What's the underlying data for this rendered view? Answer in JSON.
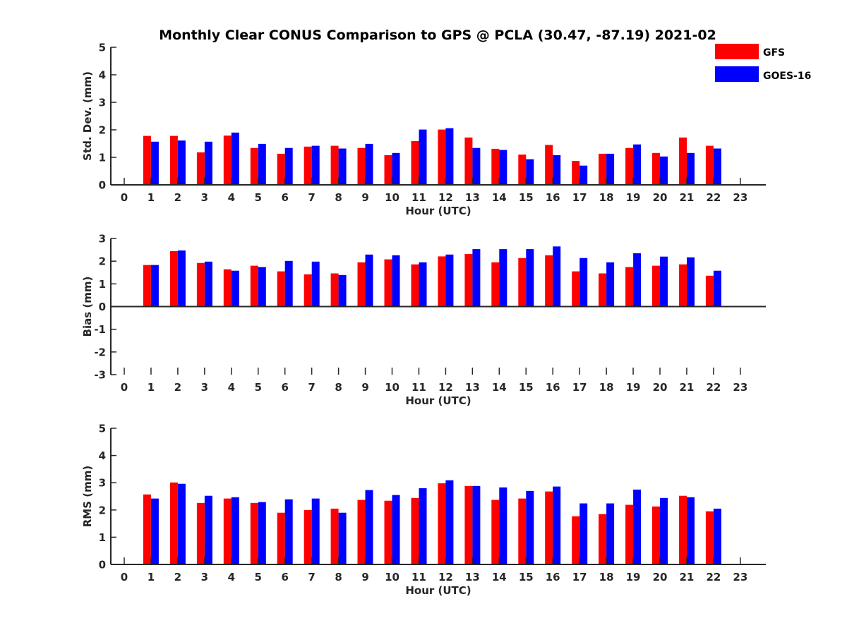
{
  "title": "Monthly Clear CONUS Comparison to GPS @ PCLA (30.47, -87.19) 2021-02",
  "legend": [
    {
      "label": "GFS",
      "color": "#ff0000"
    },
    {
      "label": "GOES-16",
      "color": "#0000ff"
    }
  ],
  "chart_data": [
    {
      "type": "bar",
      "title": "Monthly Clear CONUS Comparison to GPS @ PCLA (30.47, -87.19) 2021-02",
      "xlabel": "Hour (UTC)",
      "ylabel": "Std. Dev. (mm)",
      "ylim": [
        0,
        5
      ],
      "yticks": [
        "0",
        "1",
        "2",
        "3",
        "4",
        "5"
      ],
      "categories": [
        "0",
        "1",
        "2",
        "3",
        "4",
        "5",
        "6",
        "7",
        "8",
        "9",
        "10",
        "11",
        "12",
        "13",
        "14",
        "15",
        "16",
        "17",
        "18",
        "19",
        "20",
        "21",
        "22",
        "23"
      ],
      "series": [
        {
          "name": "GFS",
          "color": "#ff0000",
          "values": [
            null,
            1.78,
            1.78,
            1.18,
            1.79,
            1.34,
            1.13,
            1.39,
            1.42,
            1.34,
            1.08,
            1.59,
            2.01,
            1.72,
            1.31,
            1.1,
            1.45,
            0.87,
            1.13,
            1.34,
            1.16,
            1.72,
            1.42,
            null
          ]
        },
        {
          "name": "GOES-16",
          "color": "#0000ff",
          "values": [
            null,
            1.57,
            1.61,
            1.57,
            1.9,
            1.49,
            1.34,
            1.42,
            1.32,
            1.49,
            1.16,
            2.01,
            2.06,
            1.34,
            1.27,
            0.93,
            1.08,
            0.7,
            1.13,
            1.47,
            1.03,
            1.16,
            1.32,
            null
          ]
        }
      ]
    },
    {
      "type": "bar",
      "xlabel": "Hour (UTC)",
      "ylabel": "Bias (mm)",
      "ylim": [
        -3,
        3
      ],
      "yticks": [
        "-3",
        "-2",
        "-1",
        "0",
        "1",
        "2",
        "3"
      ],
      "categories": [
        "0",
        "1",
        "2",
        "3",
        "4",
        "5",
        "6",
        "7",
        "8",
        "9",
        "10",
        "11",
        "12",
        "13",
        "14",
        "15",
        "16",
        "17",
        "18",
        "19",
        "20",
        "21",
        "22",
        "23"
      ],
      "series": [
        {
          "name": "GFS",
          "color": "#ff0000",
          "values": [
            null,
            1.83,
            2.44,
            1.92,
            1.64,
            1.8,
            1.55,
            1.42,
            1.46,
            1.95,
            2.08,
            1.86,
            2.21,
            2.32,
            1.95,
            2.14,
            2.26,
            1.55,
            1.46,
            1.74,
            1.8,
            1.86,
            1.36,
            null
          ]
        },
        {
          "name": "GOES-16",
          "color": "#0000ff",
          "values": [
            null,
            1.83,
            2.47,
            1.98,
            1.58,
            1.74,
            2.01,
            1.98,
            1.39,
            2.29,
            2.26,
            1.95,
            2.29,
            2.53,
            2.53,
            2.53,
            2.65,
            2.14,
            1.95,
            2.35,
            2.2,
            2.17,
            1.58,
            null
          ]
        }
      ]
    },
    {
      "type": "bar",
      "xlabel": "Hour (UTC)",
      "ylabel": "RMS (mm)",
      "ylim": [
        0,
        5
      ],
      "yticks": [
        "0",
        "1",
        "2",
        "3",
        "4",
        "5"
      ],
      "categories": [
        "0",
        "1",
        "2",
        "3",
        "4",
        "5",
        "6",
        "7",
        "8",
        "9",
        "10",
        "11",
        "12",
        "13",
        "14",
        "15",
        "16",
        "17",
        "18",
        "19",
        "20",
        "21",
        "22",
        "23"
      ],
      "series": [
        {
          "name": "GFS",
          "color": "#ff0000",
          "values": [
            null,
            2.57,
            3.01,
            2.26,
            2.42,
            2.26,
            1.9,
            2.0,
            2.05,
            2.37,
            2.34,
            2.44,
            2.98,
            2.88,
            2.37,
            2.42,
            2.68,
            1.77,
            1.85,
            2.19,
            2.13,
            2.52,
            1.95,
            null
          ]
        },
        {
          "name": "GOES-16",
          "color": "#0000ff",
          "values": [
            null,
            2.42,
            2.96,
            2.52,
            2.47,
            2.29,
            2.39,
            2.42,
            1.9,
            2.73,
            2.55,
            2.8,
            3.09,
            2.88,
            2.83,
            2.7,
            2.86,
            2.24,
            2.24,
            2.75,
            2.44,
            2.47,
            2.05,
            null
          ]
        }
      ]
    }
  ]
}
